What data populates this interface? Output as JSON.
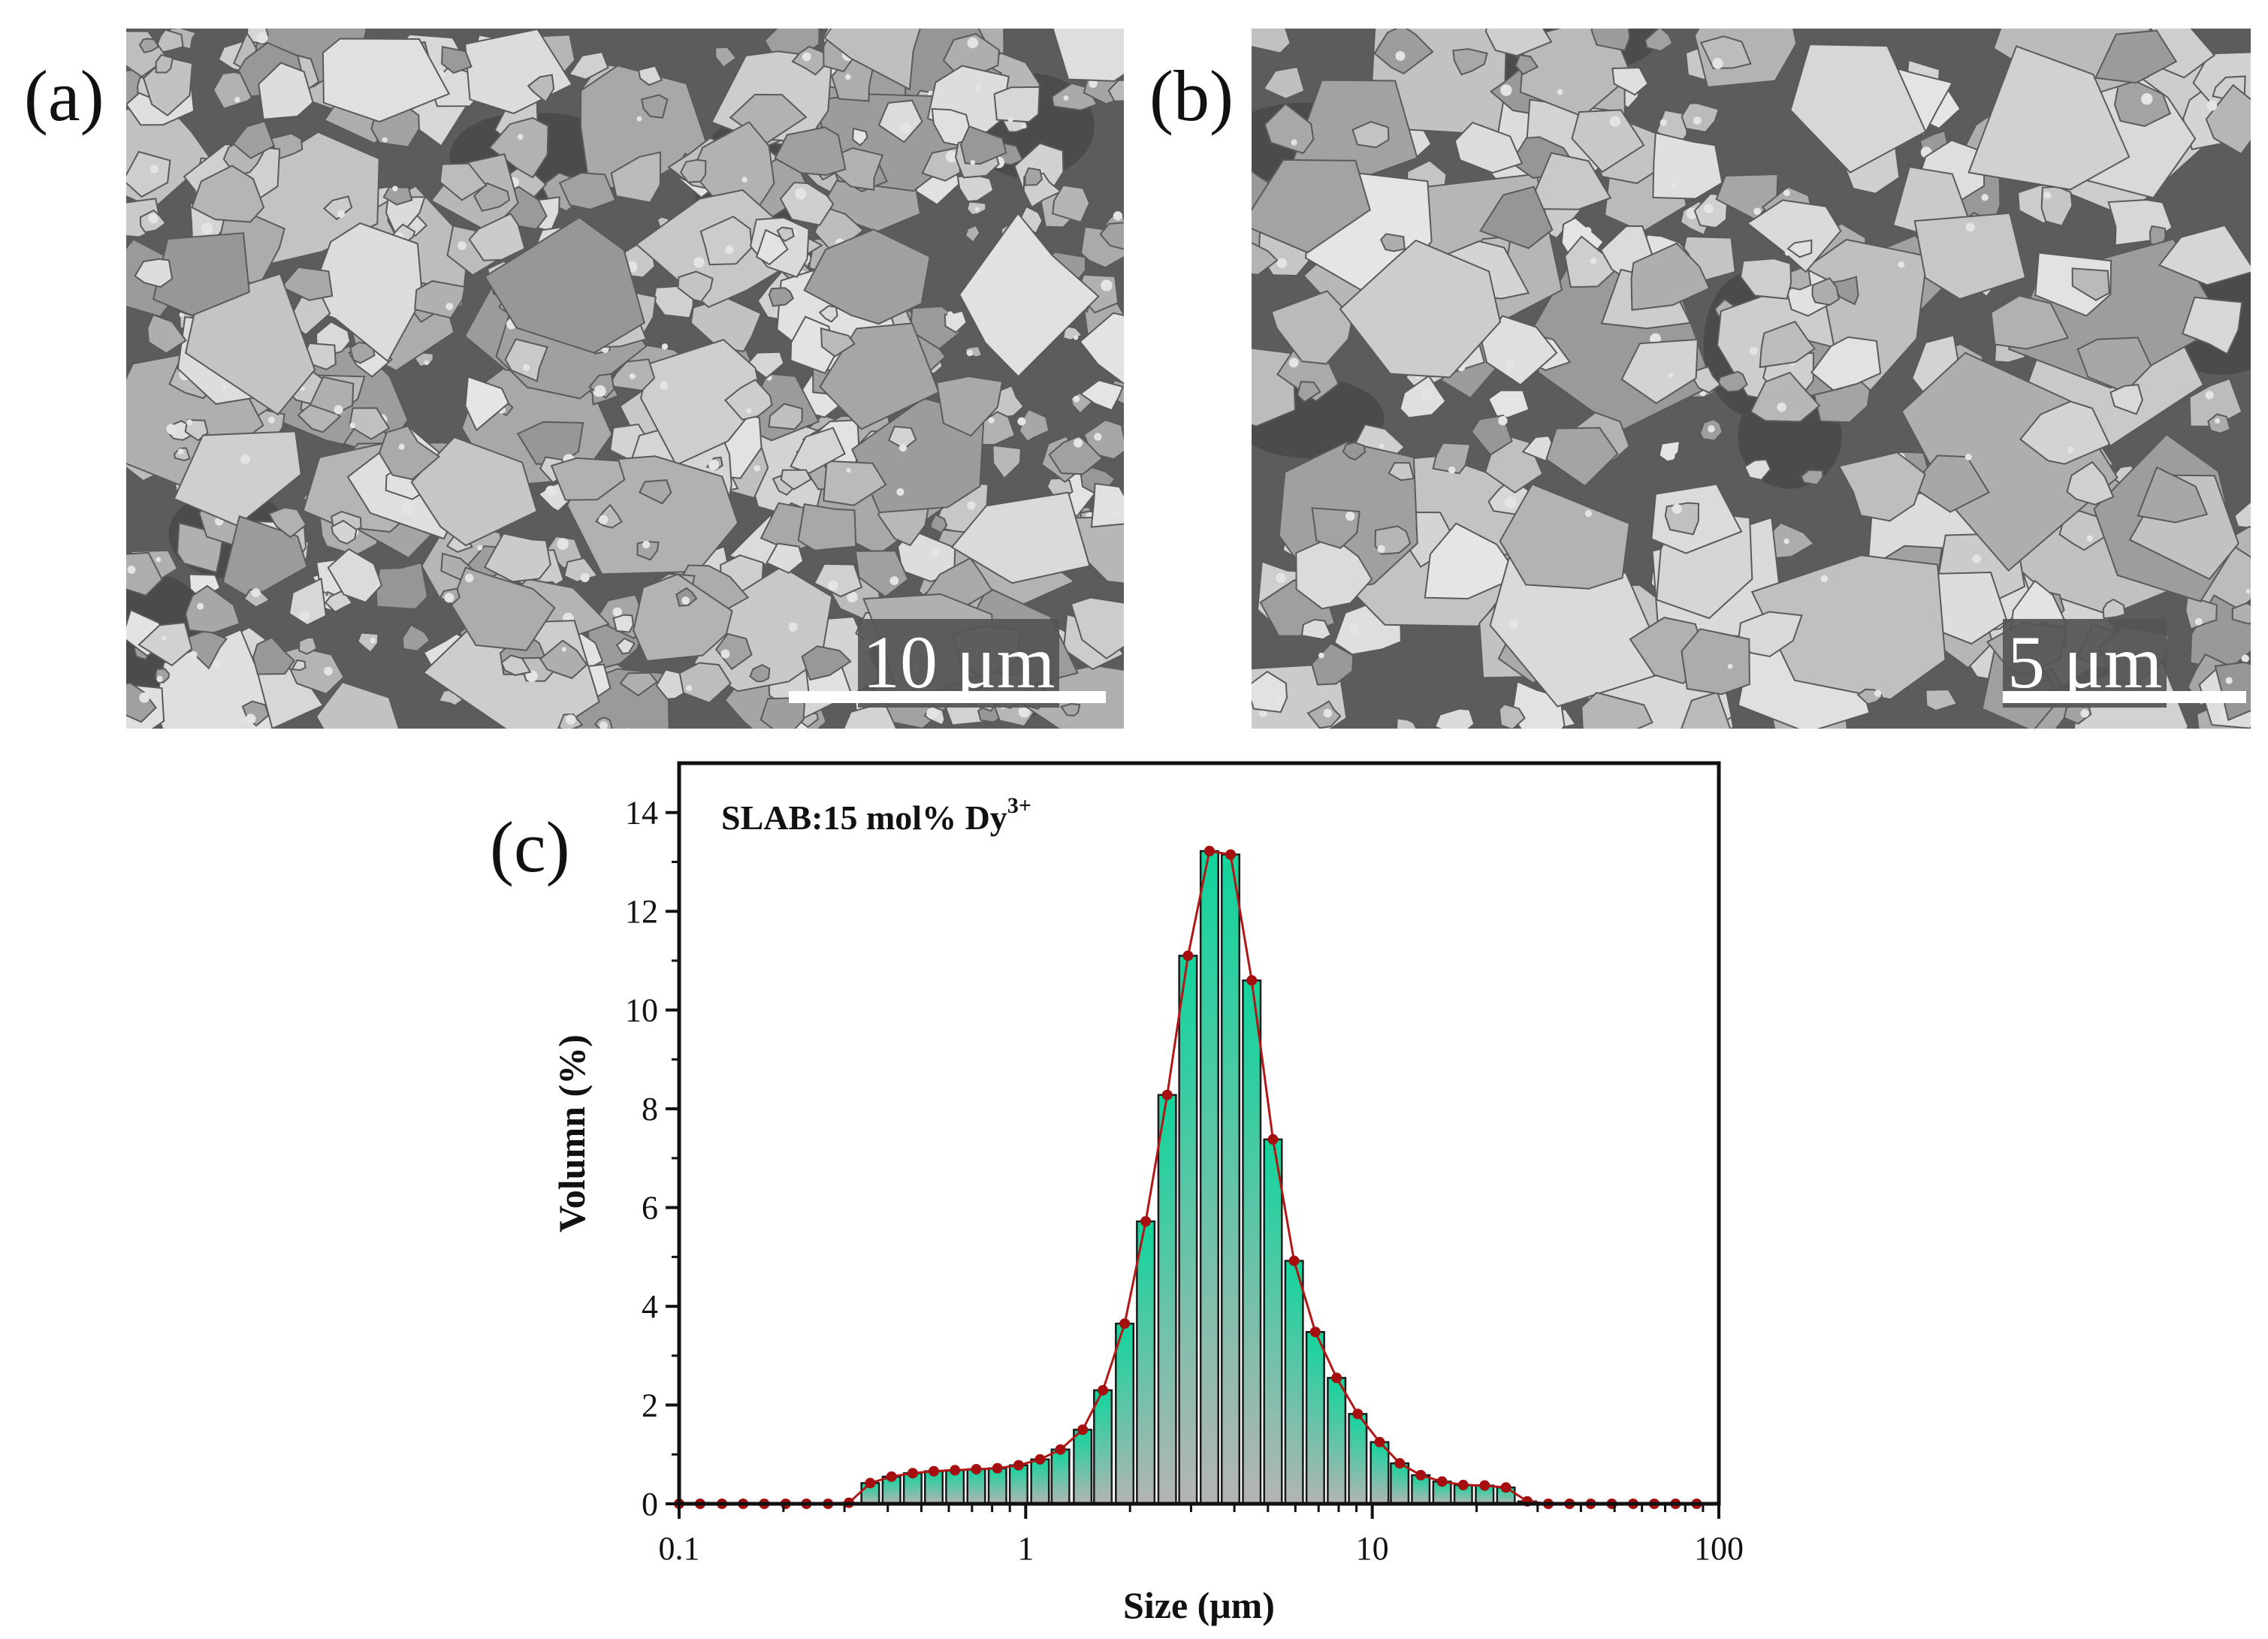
{
  "panels": {
    "a": {
      "label": "(a)",
      "scale_label": "10 μm"
    },
    "b": {
      "label": "(b)",
      "scale_label": "5 μm"
    },
    "c": {
      "label": "(c)"
    }
  },
  "colors": {
    "bar_top": "#12d49c",
    "bar_bottom": "#b4b4b4",
    "curve": "#b01818",
    "marker": "#a50f0f"
  },
  "chart_data": {
    "type": "bar",
    "title": "SLAB:15 mol% Dy",
    "title_superscript": "3+",
    "xlabel": "Size (μm)",
    "ylabel": "Volumn (%)",
    "xscale": "log",
    "xlim": [
      0.1,
      100
    ],
    "ylim": [
      0,
      15
    ],
    "xticks": [
      "0.1",
      "1",
      "10",
      "100"
    ],
    "yticks": [
      "0",
      "2",
      "4",
      "6",
      "8",
      "10",
      "12",
      "14"
    ],
    "grid": false,
    "legend": "none",
    "x": [
      0.1,
      0.115,
      0.133,
      0.153,
      0.176,
      0.203,
      0.233,
      0.269,
      0.309,
      0.356,
      0.41,
      0.472,
      0.543,
      0.625,
      0.72,
      0.829,
      0.954,
      1.1,
      1.26,
      1.46,
      1.67,
      1.93,
      2.22,
      2.56,
      2.94,
      3.39,
      3.9,
      4.49,
      5.17,
      5.95,
      6.85,
      7.89,
      9.08,
      10.5,
      12.0,
      13.8,
      15.9,
      18.3,
      21.1,
      24.3,
      28.0,
      32.2,
      37.1,
      42.7,
      49.1,
      56.6,
      65.1,
      75.0,
      86.3
    ],
    "values": [
      0,
      0,
      0,
      0,
      0,
      0,
      0,
      0,
      0.02,
      0.42,
      0.55,
      0.62,
      0.66,
      0.68,
      0.7,
      0.72,
      0.78,
      0.9,
      1.1,
      1.5,
      2.3,
      3.65,
      5.72,
      8.28,
      11.1,
      13.22,
      13.15,
      10.6,
      7.38,
      4.92,
      3.48,
      2.55,
      1.82,
      1.25,
      0.82,
      0.58,
      0.45,
      0.38,
      0.37,
      0.33,
      0.05,
      0,
      0,
      0,
      0,
      0,
      0,
      0,
      0
    ]
  }
}
